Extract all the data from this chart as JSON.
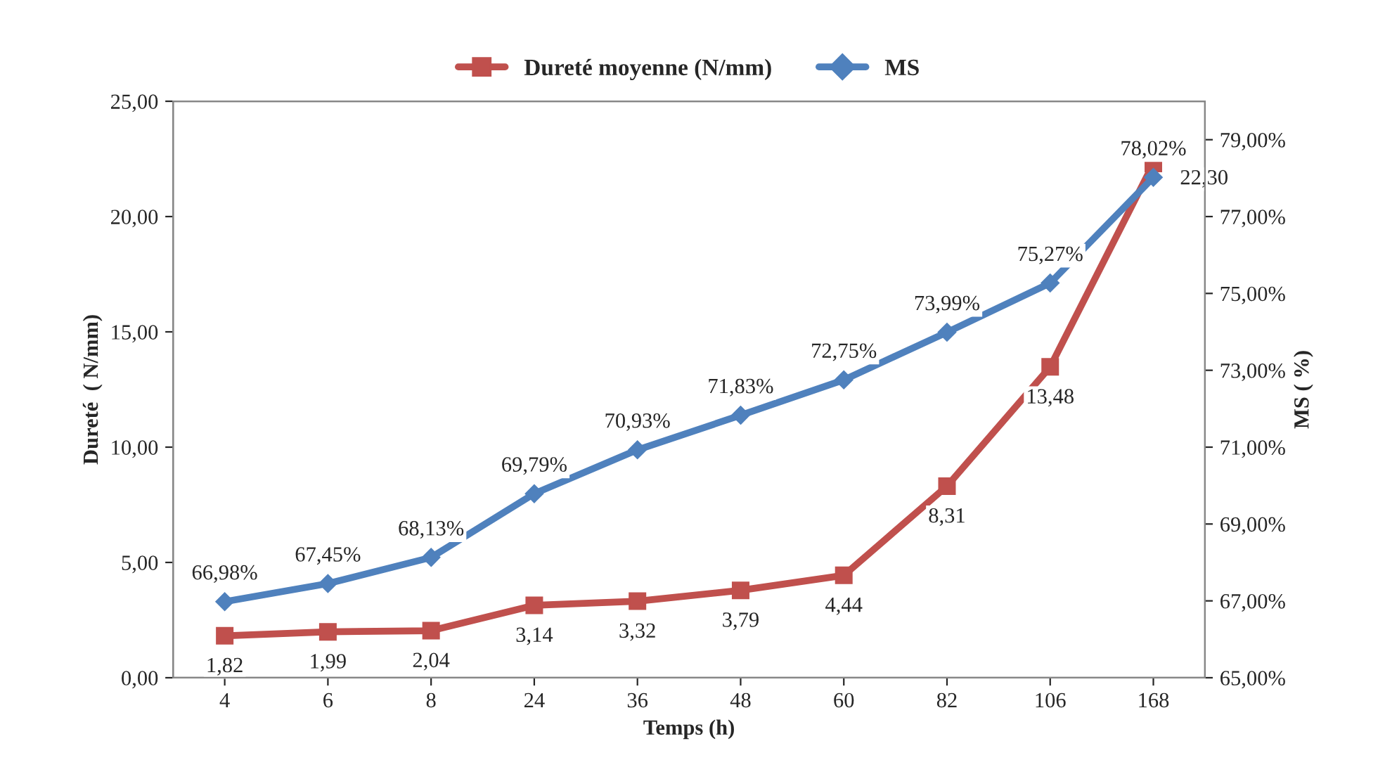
{
  "chart_data": {
    "type": "line",
    "xlabel": "Temps (h)",
    "ylabel": "Dureté  ( N/mm)",
    "y2label": "MS ( %)",
    "categories": [
      "4",
      "6",
      "8",
      "24",
      "36",
      "48",
      "60",
      "82",
      "106",
      "168"
    ],
    "series": [
      {
        "name": "Dureté moyenne (N/mm)",
        "color": "#c0504d",
        "marker": "square",
        "values": [
          1.82,
          1.99,
          2.04,
          3.14,
          3.32,
          3.79,
          4.44,
          8.31,
          13.48,
          22.3
        ],
        "value_labels": [
          "1,82",
          "1,99",
          "2,04",
          "3,14",
          "3,32",
          "3,79",
          "4,44",
          "8,31",
          "13,48",
          "22,30"
        ]
      },
      {
        "name": "MS",
        "color": "#4f81bd",
        "marker": "diamond",
        "axis": "y2",
        "values": [
          66.98,
          67.45,
          68.13,
          69.79,
          70.93,
          71.83,
          72.75,
          73.99,
          75.27,
          78.02
        ],
        "value_labels": [
          "66,98%",
          "67,45%",
          "68,13%",
          "69,79%",
          "70,93%",
          "71,83%",
          "72,75%",
          "73,99%",
          "75,27%",
          "78,02%"
        ]
      }
    ],
    "ylim": [
      0,
      25
    ],
    "yticks": [
      {
        "value": 0,
        "label": "0,00"
      },
      {
        "value": 5,
        "label": "5,00"
      },
      {
        "value": 10,
        "label": "10,00"
      },
      {
        "value": 15,
        "label": "15,00"
      },
      {
        "value": 20,
        "label": "20,00"
      },
      {
        "value": 25,
        "label": "25,00"
      }
    ],
    "y2lim": [
      65,
      80
    ],
    "y2ticks": [
      {
        "value": 65,
        "label": "65,00%"
      },
      {
        "value": 67,
        "label": "67,00%"
      },
      {
        "value": 69,
        "label": "69,00%"
      },
      {
        "value": 71,
        "label": "71,00%"
      },
      {
        "value": 73,
        "label": "73,00%"
      },
      {
        "value": 75,
        "label": "75,00%"
      },
      {
        "value": 77,
        "label": "77,00%"
      },
      {
        "value": 79,
        "label": "79,00%"
      }
    ],
    "legend": "top",
    "grid": false,
    "line_style": "solid"
  }
}
